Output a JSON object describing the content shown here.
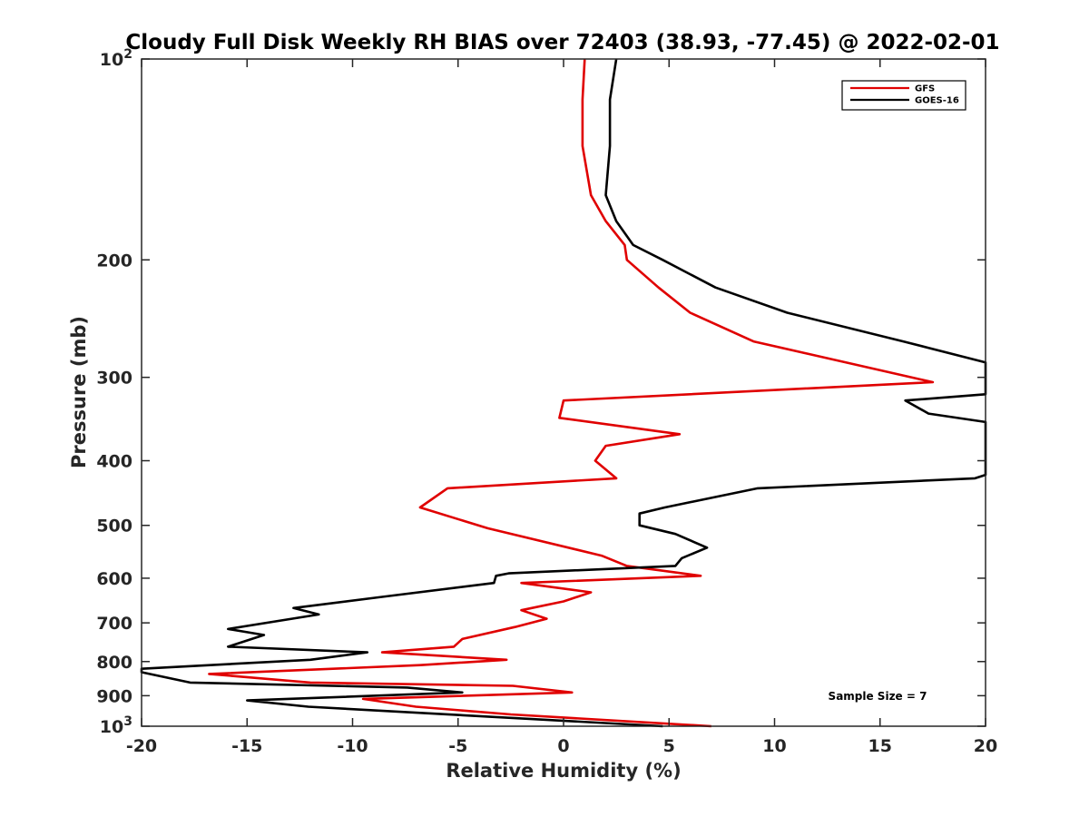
{
  "chart_data": {
    "type": "line",
    "title": "Cloudy Full Disk Weekly RH BIAS over 72403 (38.93, -77.45) @ 2022-02-01",
    "xlabel": "Relative Humidity (%)",
    "ylabel": "Pressure (mb)",
    "xlim": [
      -20,
      20
    ],
    "ylim": [
      100,
      1000
    ],
    "y_scale": "log",
    "y_reversed": true,
    "grid": false,
    "legend_position": "top-right",
    "x_ticks": [
      -20,
      -15,
      -10,
      -5,
      0,
      5,
      10,
      15,
      20
    ],
    "y_ticks": [
      {
        "value": 100,
        "base": "10",
        "exp": "2"
      },
      {
        "value": 200,
        "label": "200"
      },
      {
        "value": 300,
        "label": "300"
      },
      {
        "value": 400,
        "label": "400"
      },
      {
        "value": 500,
        "label": "500"
      },
      {
        "value": 600,
        "label": "600"
      },
      {
        "value": 700,
        "label": "700"
      },
      {
        "value": 800,
        "label": "800"
      },
      {
        "value": 900,
        "label": "900"
      },
      {
        "value": 1000,
        "base": "10",
        "exp": "3"
      }
    ],
    "annotation": "Sample Size = 7",
    "series": [
      {
        "name": "GFS",
        "color": "#e00000",
        "points": [
          [
            1.0,
            100
          ],
          [
            0.9,
            115
          ],
          [
            0.9,
            135
          ],
          [
            1.3,
            160
          ],
          [
            2.0,
            175
          ],
          [
            2.9,
            190
          ],
          [
            3.0,
            200
          ],
          [
            4.5,
            220
          ],
          [
            6.0,
            240
          ],
          [
            9.0,
            265
          ],
          [
            17.5,
            305
          ],
          [
            0.0,
            325
          ],
          [
            -0.2,
            345
          ],
          [
            5.5,
            365
          ],
          [
            2.0,
            380
          ],
          [
            1.5,
            400
          ],
          [
            2.5,
            425
          ],
          [
            -5.5,
            440
          ],
          [
            -6.8,
            470
          ],
          [
            -3.6,
            505
          ],
          [
            1.8,
            555
          ],
          [
            3.0,
            575
          ],
          [
            6.5,
            595
          ],
          [
            -2.0,
            610
          ],
          [
            1.3,
            630
          ],
          [
            0.0,
            650
          ],
          [
            -2.0,
            670
          ],
          [
            -0.8,
            690
          ],
          [
            -2.3,
            710
          ],
          [
            -4.8,
            740
          ],
          [
            -5.2,
            760
          ],
          [
            -8.6,
            775
          ],
          [
            -2.7,
            795
          ],
          [
            -6.8,
            810
          ],
          [
            -16.8,
            835
          ],
          [
            -12.0,
            860
          ],
          [
            -2.4,
            870
          ],
          [
            0.4,
            890
          ],
          [
            -9.5,
            910
          ],
          [
            -7.0,
            935
          ],
          [
            -2.5,
            960
          ],
          [
            7.0,
            1000
          ]
        ]
      },
      {
        "name": "GOES-16",
        "color": "#000000",
        "points": [
          [
            2.5,
            100
          ],
          [
            2.2,
            115
          ],
          [
            2.2,
            135
          ],
          [
            2.0,
            160
          ],
          [
            2.5,
            175
          ],
          [
            3.3,
            190
          ],
          [
            4.7,
            200
          ],
          [
            7.2,
            220
          ],
          [
            10.6,
            240
          ],
          [
            16.1,
            265
          ],
          [
            20.0,
            285
          ],
          [
            20.0,
            318
          ],
          [
            16.2,
            325
          ],
          [
            17.3,
            340
          ],
          [
            20.0,
            350
          ],
          [
            20.0,
            420
          ],
          [
            19.5,
            425
          ],
          [
            9.2,
            440
          ],
          [
            4.8,
            470
          ],
          [
            3.6,
            480
          ],
          [
            3.6,
            500
          ],
          [
            5.3,
            515
          ],
          [
            6.8,
            540
          ],
          [
            5.6,
            560
          ],
          [
            5.3,
            575
          ],
          [
            -2.6,
            590
          ],
          [
            -3.2,
            595
          ],
          [
            -3.3,
            610
          ],
          [
            -8.6,
            640
          ],
          [
            -12.8,
            665
          ],
          [
            -11.6,
            680
          ],
          [
            -15.9,
            715
          ],
          [
            -14.2,
            730
          ],
          [
            -15.9,
            760
          ],
          [
            -9.3,
            775
          ],
          [
            -12.0,
            795
          ],
          [
            -20.0,
            820
          ],
          [
            -20.0,
            830
          ],
          [
            -17.7,
            860
          ],
          [
            -7.4,
            875
          ],
          [
            -4.8,
            890
          ],
          [
            -15.0,
            915
          ],
          [
            -12.1,
            935
          ],
          [
            4.7,
            1000
          ]
        ]
      }
    ]
  }
}
